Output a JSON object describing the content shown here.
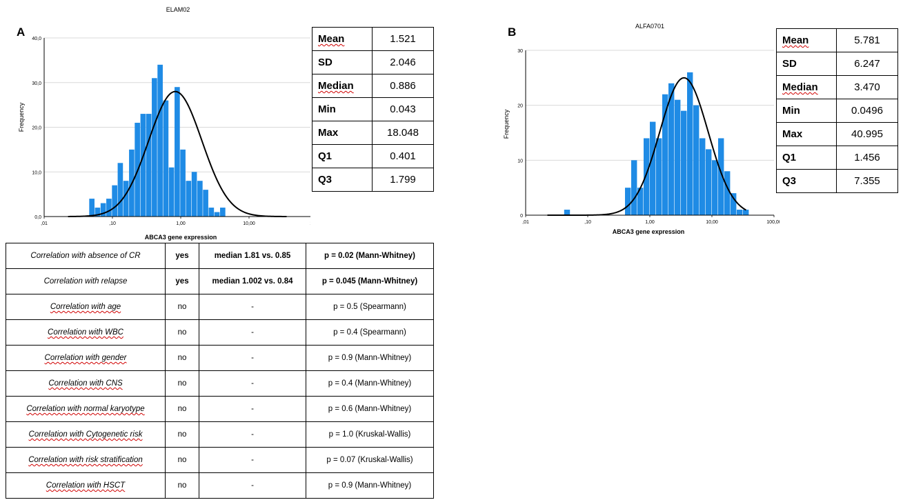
{
  "panel_a": {
    "letter": "A",
    "stats": [
      {
        "label": "Mean",
        "value": "1.521"
      },
      {
        "label": "SD",
        "value": "2.046"
      },
      {
        "label": "Median",
        "value": "0.886"
      },
      {
        "label": "Min",
        "value": "0.043"
      },
      {
        "label": "Max",
        "value": "18.048"
      },
      {
        "label": "Q1",
        "value": "0.401"
      },
      {
        "label": "Q3",
        "value": "1.799"
      }
    ]
  },
  "panel_b": {
    "letter": "B",
    "stats": [
      {
        "label": "Mean",
        "value": "5.781"
      },
      {
        "label": "SD",
        "value": "6.247"
      },
      {
        "label": "Median",
        "value": "3.470"
      },
      {
        "label": "Min",
        "value": "0.0496"
      },
      {
        "label": "Max",
        "value": "40.995"
      },
      {
        "label": "Q1",
        "value": "1.456"
      },
      {
        "label": "Q3",
        "value": "7.355"
      }
    ]
  },
  "correlations": [
    {
      "label": "Correlation with absence of CR",
      "result": "yes",
      "detail": "median 1.81 vs. 0.85",
      "pvalue": "p = 0.02 (Mann-Whitney)",
      "emph": true
    },
    {
      "label": "Correlation with relapse",
      "result": "yes",
      "detail": "median 1.002 vs. 0.84",
      "pvalue": "p = 0.045 (Mann-Whitney)",
      "emph": true
    },
    {
      "label": "Correlation with age",
      "result": "no",
      "detail": "-",
      "pvalue": "p = 0.5 (Spearmann)",
      "emph": false
    },
    {
      "label": "Correlation with WBC",
      "result": "no",
      "detail": "-",
      "pvalue": "p = 0.4 (Spearmann)",
      "emph": false
    },
    {
      "label": "Correlation with gender",
      "result": "no",
      "detail": "-",
      "pvalue": "p = 0.9 (Mann-Whitney)",
      "emph": false
    },
    {
      "label": "Correlation with CNS",
      "result": "no",
      "detail": "-",
      "pvalue": "p = 0.4 (Mann-Whitney)",
      "emph": false
    },
    {
      "label": "Correlation  with normal karyotype",
      "result": "no",
      "detail": "-",
      "pvalue": "p = 0.6 (Mann-Whitney)",
      "emph": false
    },
    {
      "label": "Correlation with Cytogenetic risk",
      "result": "no",
      "detail": "-",
      "pvalue": "p = 1.0 (Kruskal-Wallis)",
      "emph": false
    },
    {
      "label": "Correlation with risk stratification",
      "result": "no",
      "detail": "-",
      "pvalue": "p = 0.07 (Kruskal-Wallis)",
      "emph": false
    },
    {
      "label": "Correlation with HSCT",
      "result": "no",
      "detail": "-",
      "pvalue": "p = 0.9 (Mann-Whitney)",
      "emph": false
    }
  ],
  "chart_data": [
    {
      "type": "bar",
      "title": "ELAM02",
      "xlabel": "ABCA3 gene expression",
      "ylabel": "Frequency",
      "x_scale": "log",
      "x_ticks": [
        0.01,
        0.1,
        1,
        10,
        100
      ],
      "x_tick_labels": [
        ",01",
        ",10",
        "1,00",
        "10,00",
        "100,00"
      ],
      "y_ticks": [
        0,
        10,
        20,
        30,
        40
      ],
      "y_tick_labels": [
        "0,0",
        "10,0",
        "20,0",
        "30,0",
        "40,0"
      ],
      "ylim": [
        0,
        40
      ],
      "grid": true,
      "bar_color": "#1f8be5",
      "bins": {
        "log_start": -1.34,
        "log_width": 0.0833,
        "values": [
          4,
          2,
          3,
          4,
          7,
          12,
          8,
          15,
          21,
          23,
          23,
          31,
          34,
          26,
          11,
          29,
          15,
          8,
          10,
          8,
          6,
          2,
          1,
          2
        ]
      },
      "normal_curve": {
        "peak_log": -0.08,
        "sd_log": 0.39,
        "peak_value": 28
      }
    },
    {
      "type": "bar",
      "title": "ALFA0701",
      "xlabel": "ABCA3 gene expression",
      "ylabel": "Frequency",
      "x_scale": "log",
      "x_ticks": [
        0.01,
        0.1,
        1,
        10,
        100
      ],
      "x_tick_labels": [
        ",01",
        ",10",
        "1,00",
        "10,00",
        "100,00"
      ],
      "y_ticks": [
        0,
        10,
        20,
        30
      ],
      "y_tick_labels": [
        "0",
        "10",
        "20",
        "30"
      ],
      "ylim": [
        0,
        30
      ],
      "grid": true,
      "bar_color": "#1f8be5",
      "outlier_bins": [
        {
          "log_start": -1.38,
          "log_width": 0.1,
          "value": 1
        }
      ],
      "bins": {
        "log_start": -0.4,
        "log_width": 0.1,
        "values": [
          5,
          10,
          5,
          14,
          17,
          14,
          22,
          24,
          21,
          19,
          26,
          20,
          14,
          12,
          10,
          14,
          8,
          4,
          1,
          1
        ]
      },
      "normal_curve": {
        "peak_log": 0.55,
        "sd_log": 0.39,
        "peak_value": 25
      }
    }
  ]
}
